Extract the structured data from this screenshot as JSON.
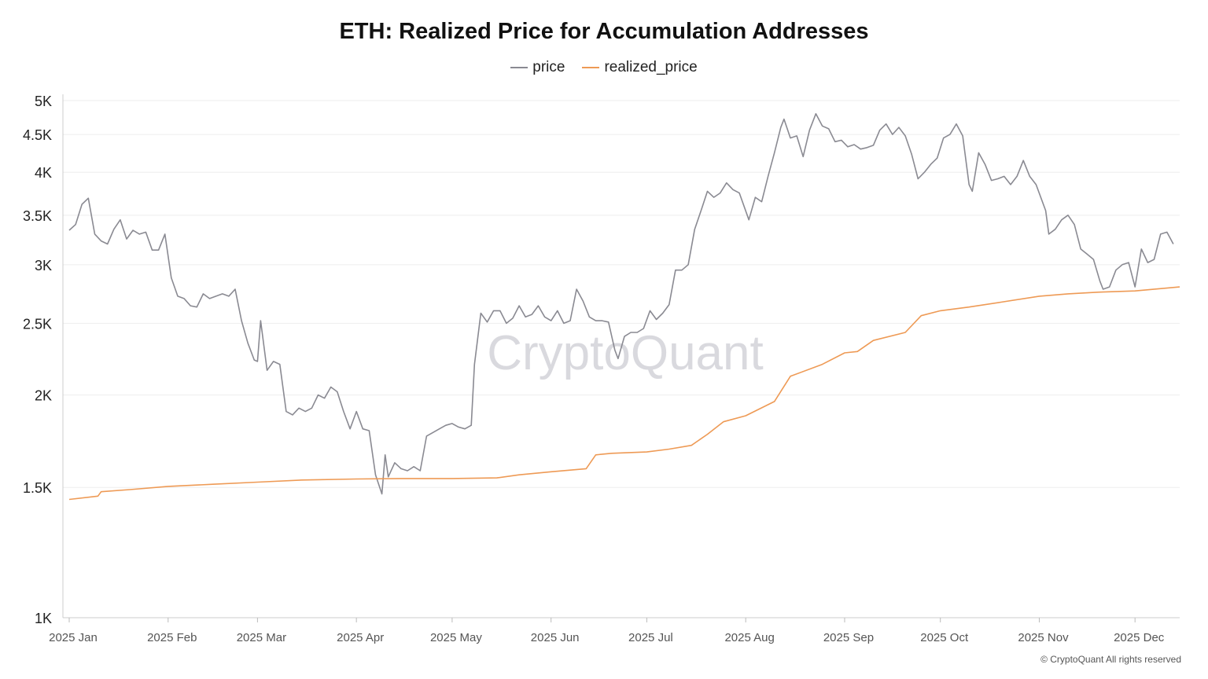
{
  "chart_data": {
    "type": "line",
    "title": "ETH: Realized Price for Accumulation Addresses",
    "xlabel": "",
    "ylabel": "",
    "y_scale": "log",
    "ylim": [
      1000,
      5000
    ],
    "y_ticks": [
      "1K",
      "1.5K",
      "2K",
      "2.5K",
      "3K",
      "3.5K",
      "4K",
      "4.5K",
      "5K"
    ],
    "y_tick_values": [
      1000,
      1500,
      2000,
      2500,
      3000,
      3500,
      4000,
      4500,
      5000
    ],
    "x_range": [
      "2025-01-01",
      "2025-12-15"
    ],
    "x_ticks": [
      {
        "label": "2025 Jan",
        "date": "2025-01-01"
      },
      {
        "label": "2025 Feb",
        "date": "2025-02-01"
      },
      {
        "label": "2025 Mar",
        "date": "2025-03-01"
      },
      {
        "label": "2025 Apr",
        "date": "2025-04-01"
      },
      {
        "label": "2025 May",
        "date": "2025-05-01"
      },
      {
        "label": "2025 Jun",
        "date": "2025-06-01"
      },
      {
        "label": "2025 Jul",
        "date": "2025-07-01"
      },
      {
        "label": "2025 Aug",
        "date": "2025-08-01"
      },
      {
        "label": "2025 Sep",
        "date": "2025-09-01"
      },
      {
        "label": "2025 Oct",
        "date": "2025-10-01"
      },
      {
        "label": "2025 Nov",
        "date": "2025-11-01"
      },
      {
        "label": "2025 Dec",
        "date": "2025-12-01"
      }
    ],
    "grid": true,
    "legend_placement": "top-center",
    "series": [
      {
        "name": "price",
        "color": "#8a8a92",
        "points": [
          [
            "2025-01-01",
            3340
          ],
          [
            "2025-01-03",
            3400
          ],
          [
            "2025-01-05",
            3620
          ],
          [
            "2025-01-07",
            3690
          ],
          [
            "2025-01-09",
            3300
          ],
          [
            "2025-01-11",
            3230
          ],
          [
            "2025-01-13",
            3200
          ],
          [
            "2025-01-15",
            3350
          ],
          [
            "2025-01-17",
            3450
          ],
          [
            "2025-01-19",
            3250
          ],
          [
            "2025-01-21",
            3340
          ],
          [
            "2025-01-23",
            3300
          ],
          [
            "2025-01-25",
            3320
          ],
          [
            "2025-01-27",
            3140
          ],
          [
            "2025-01-29",
            3140
          ],
          [
            "2025-01-31",
            3300
          ],
          [
            "2025-02-02",
            2880
          ],
          [
            "2025-02-04",
            2720
          ],
          [
            "2025-02-06",
            2700
          ],
          [
            "2025-02-08",
            2640
          ],
          [
            "2025-02-10",
            2630
          ],
          [
            "2025-02-12",
            2740
          ],
          [
            "2025-02-14",
            2700
          ],
          [
            "2025-02-16",
            2720
          ],
          [
            "2025-02-18",
            2740
          ],
          [
            "2025-02-20",
            2720
          ],
          [
            "2025-02-22",
            2780
          ],
          [
            "2025-02-24",
            2520
          ],
          [
            "2025-02-26",
            2350
          ],
          [
            "2025-02-28",
            2230
          ],
          [
            "2025-03-01",
            2220
          ],
          [
            "2025-03-02",
            2520
          ],
          [
            "2025-03-04",
            2160
          ],
          [
            "2025-03-06",
            2220
          ],
          [
            "2025-03-08",
            2200
          ],
          [
            "2025-03-10",
            1900
          ],
          [
            "2025-03-12",
            1880
          ],
          [
            "2025-03-14",
            1920
          ],
          [
            "2025-03-16",
            1900
          ],
          [
            "2025-03-18",
            1920
          ],
          [
            "2025-03-20",
            2000
          ],
          [
            "2025-03-22",
            1980
          ],
          [
            "2025-03-24",
            2050
          ],
          [
            "2025-03-26",
            2020
          ],
          [
            "2025-03-28",
            1900
          ],
          [
            "2025-03-30",
            1800
          ],
          [
            "2025-04-01",
            1900
          ],
          [
            "2025-04-03",
            1800
          ],
          [
            "2025-04-05",
            1790
          ],
          [
            "2025-04-07",
            1560
          ],
          [
            "2025-04-09",
            1470
          ],
          [
            "2025-04-10",
            1660
          ],
          [
            "2025-04-11",
            1550
          ],
          [
            "2025-04-13",
            1620
          ],
          [
            "2025-04-15",
            1590
          ],
          [
            "2025-04-17",
            1580
          ],
          [
            "2025-04-19",
            1600
          ],
          [
            "2025-04-21",
            1580
          ],
          [
            "2025-04-23",
            1760
          ],
          [
            "2025-04-25",
            1780
          ],
          [
            "2025-04-27",
            1800
          ],
          [
            "2025-04-29",
            1820
          ],
          [
            "2025-05-01",
            1830
          ],
          [
            "2025-05-03",
            1810
          ],
          [
            "2025-05-05",
            1800
          ],
          [
            "2025-05-07",
            1820
          ],
          [
            "2025-05-08",
            2200
          ],
          [
            "2025-05-10",
            2580
          ],
          [
            "2025-05-12",
            2510
          ],
          [
            "2025-05-14",
            2600
          ],
          [
            "2025-05-16",
            2600
          ],
          [
            "2025-05-18",
            2500
          ],
          [
            "2025-05-20",
            2540
          ],
          [
            "2025-05-22",
            2640
          ],
          [
            "2025-05-24",
            2550
          ],
          [
            "2025-05-26",
            2570
          ],
          [
            "2025-05-28",
            2640
          ],
          [
            "2025-05-30",
            2550
          ],
          [
            "2025-06-01",
            2520
          ],
          [
            "2025-06-03",
            2600
          ],
          [
            "2025-06-05",
            2500
          ],
          [
            "2025-06-07",
            2520
          ],
          [
            "2025-06-09",
            2780
          ],
          [
            "2025-06-11",
            2680
          ],
          [
            "2025-06-13",
            2550
          ],
          [
            "2025-06-15",
            2520
          ],
          [
            "2025-06-17",
            2520
          ],
          [
            "2025-06-19",
            2510
          ],
          [
            "2025-06-21",
            2300
          ],
          [
            "2025-06-22",
            2240
          ],
          [
            "2025-06-24",
            2400
          ],
          [
            "2025-06-26",
            2430
          ],
          [
            "2025-06-28",
            2430
          ],
          [
            "2025-06-30",
            2460
          ],
          [
            "2025-07-02",
            2600
          ],
          [
            "2025-07-04",
            2530
          ],
          [
            "2025-07-06",
            2580
          ],
          [
            "2025-07-08",
            2650
          ],
          [
            "2025-07-10",
            2950
          ],
          [
            "2025-07-12",
            2950
          ],
          [
            "2025-07-14",
            3000
          ],
          [
            "2025-07-16",
            3350
          ],
          [
            "2025-07-18",
            3550
          ],
          [
            "2025-07-20",
            3770
          ],
          [
            "2025-07-22",
            3700
          ],
          [
            "2025-07-24",
            3750
          ],
          [
            "2025-07-26",
            3870
          ],
          [
            "2025-07-28",
            3790
          ],
          [
            "2025-07-30",
            3750
          ],
          [
            "2025-08-02",
            3450
          ],
          [
            "2025-08-04",
            3700
          ],
          [
            "2025-08-06",
            3650
          ],
          [
            "2025-08-08",
            3950
          ],
          [
            "2025-08-10",
            4250
          ],
          [
            "2025-08-12",
            4600
          ],
          [
            "2025-08-13",
            4720
          ],
          [
            "2025-08-15",
            4450
          ],
          [
            "2025-08-17",
            4480
          ],
          [
            "2025-08-19",
            4200
          ],
          [
            "2025-08-21",
            4560
          ],
          [
            "2025-08-23",
            4800
          ],
          [
            "2025-08-25",
            4620
          ],
          [
            "2025-08-27",
            4580
          ],
          [
            "2025-08-29",
            4400
          ],
          [
            "2025-08-31",
            4420
          ],
          [
            "2025-09-02",
            4330
          ],
          [
            "2025-09-04",
            4360
          ],
          [
            "2025-09-06",
            4300
          ],
          [
            "2025-09-08",
            4320
          ],
          [
            "2025-09-10",
            4350
          ],
          [
            "2025-09-12",
            4560
          ],
          [
            "2025-09-14",
            4650
          ],
          [
            "2025-09-16",
            4500
          ],
          [
            "2025-09-18",
            4600
          ],
          [
            "2025-09-20",
            4480
          ],
          [
            "2025-09-22",
            4230
          ],
          [
            "2025-09-24",
            3920
          ],
          [
            "2025-09-26",
            4000
          ],
          [
            "2025-09-28",
            4100
          ],
          [
            "2025-09-30",
            4180
          ],
          [
            "2025-10-02",
            4450
          ],
          [
            "2025-10-04",
            4500
          ],
          [
            "2025-10-06",
            4650
          ],
          [
            "2025-10-08",
            4480
          ],
          [
            "2025-10-10",
            3850
          ],
          [
            "2025-10-11",
            3770
          ],
          [
            "2025-10-13",
            4250
          ],
          [
            "2025-10-15",
            4100
          ],
          [
            "2025-10-17",
            3900
          ],
          [
            "2025-10-19",
            3920
          ],
          [
            "2025-10-21",
            3950
          ],
          [
            "2025-10-23",
            3850
          ],
          [
            "2025-10-25",
            3950
          ],
          [
            "2025-10-27",
            4150
          ],
          [
            "2025-10-29",
            3950
          ],
          [
            "2025-10-31",
            3850
          ],
          [
            "2025-11-03",
            3550
          ],
          [
            "2025-11-04",
            3300
          ],
          [
            "2025-11-06",
            3350
          ],
          [
            "2025-11-08",
            3450
          ],
          [
            "2025-11-10",
            3500
          ],
          [
            "2025-11-12",
            3400
          ],
          [
            "2025-11-14",
            3150
          ],
          [
            "2025-11-16",
            3100
          ],
          [
            "2025-11-18",
            3050
          ],
          [
            "2025-11-20",
            2850
          ],
          [
            "2025-11-21",
            2780
          ],
          [
            "2025-11-23",
            2800
          ],
          [
            "2025-11-25",
            2950
          ],
          [
            "2025-11-27",
            3000
          ],
          [
            "2025-11-29",
            3020
          ],
          [
            "2025-12-01",
            2800
          ],
          [
            "2025-12-03",
            3150
          ],
          [
            "2025-12-05",
            3020
          ],
          [
            "2025-12-07",
            3050
          ],
          [
            "2025-12-09",
            3300
          ],
          [
            "2025-12-11",
            3320
          ],
          [
            "2025-12-13",
            3200
          ]
        ]
      },
      {
        "name": "realized_price",
        "color": "#ee9a55",
        "points": [
          [
            "2025-01-01",
            1445
          ],
          [
            "2025-01-10",
            1460
          ],
          [
            "2025-01-11",
            1480
          ],
          [
            "2025-01-20",
            1490
          ],
          [
            "2025-02-01",
            1505
          ],
          [
            "2025-02-15",
            1515
          ],
          [
            "2025-03-01",
            1525
          ],
          [
            "2025-03-15",
            1535
          ],
          [
            "2025-04-01",
            1540
          ],
          [
            "2025-04-15",
            1542
          ],
          [
            "2025-05-01",
            1542
          ],
          [
            "2025-05-15",
            1545
          ],
          [
            "2025-05-22",
            1560
          ],
          [
            "2025-06-01",
            1575
          ],
          [
            "2025-06-12",
            1590
          ],
          [
            "2025-06-15",
            1660
          ],
          [
            "2025-06-20",
            1668
          ],
          [
            "2025-07-01",
            1675
          ],
          [
            "2025-07-08",
            1690
          ],
          [
            "2025-07-15",
            1710
          ],
          [
            "2025-07-20",
            1770
          ],
          [
            "2025-07-25",
            1840
          ],
          [
            "2025-08-01",
            1875
          ],
          [
            "2025-08-10",
            1960
          ],
          [
            "2025-08-15",
            2120
          ],
          [
            "2025-08-25",
            2200
          ],
          [
            "2025-09-01",
            2280
          ],
          [
            "2025-09-05",
            2290
          ],
          [
            "2025-09-10",
            2370
          ],
          [
            "2025-09-20",
            2430
          ],
          [
            "2025-09-25",
            2560
          ],
          [
            "2025-10-01",
            2600
          ],
          [
            "2025-10-10",
            2630
          ],
          [
            "2025-10-20",
            2670
          ],
          [
            "2025-11-01",
            2720
          ],
          [
            "2025-11-10",
            2740
          ],
          [
            "2025-11-20",
            2755
          ],
          [
            "2025-12-01",
            2765
          ],
          [
            "2025-12-15",
            2800
          ]
        ]
      }
    ]
  },
  "watermark": "CryptoQuant",
  "copyright": "© CryptoQuant All rights reserved"
}
